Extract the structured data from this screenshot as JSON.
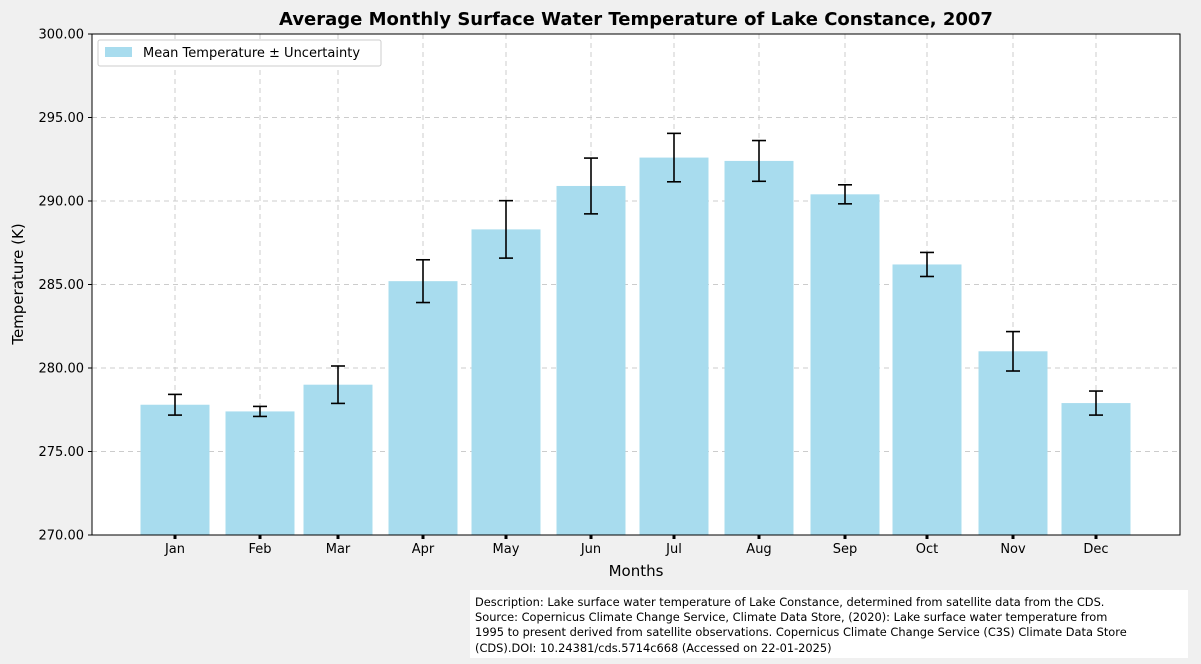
{
  "chart_data": {
    "type": "bar",
    "title": "Average Monthly Surface Water Temperature of Lake Constance, 2007",
    "xlabel": "Months",
    "ylabel": "Temperature (K)",
    "ylim": [
      270,
      300
    ],
    "yticks": [
      "270.00",
      "275.00",
      "280.00",
      "285.00",
      "290.00",
      "295.00",
      "300.00"
    ],
    "grid": true,
    "legend_position": "top-left",
    "bar_color": "#a8dcee",
    "categories": [
      "Jan",
      "Feb",
      "Mar",
      "Apr",
      "May",
      "Jun",
      "Jul",
      "Aug",
      "Sep",
      "Oct",
      "Nov",
      "Dec"
    ],
    "series": [
      {
        "name": "Mean Temperature ± Uncertainty",
        "values": [
          277.8,
          277.4,
          279.0,
          285.2,
          288.3,
          290.9,
          292.6,
          292.4,
          290.4,
          286.2,
          281.0,
          277.9
        ],
        "error": [
          0.62,
          0.3,
          1.12,
          1.28,
          1.72,
          1.67,
          1.45,
          1.22,
          0.57,
          0.72,
          1.18,
          0.72
        ]
      }
    ]
  },
  "description": {
    "lines": [
      "Description: Lake surface water temperature of Lake Constance, determined from satellite data from the CDS.",
      "Source: Copernicus Climate Change Service, Climate Data Store, (2020): Lake surface water temperature from",
      "1995 to present derived from satellite observations. Copernicus Climate Change Service (C3S) Climate Data Store",
      "(CDS).DOI: 10.24381/cds.5714c668 (Accessed on 22-01-2025)"
    ]
  }
}
